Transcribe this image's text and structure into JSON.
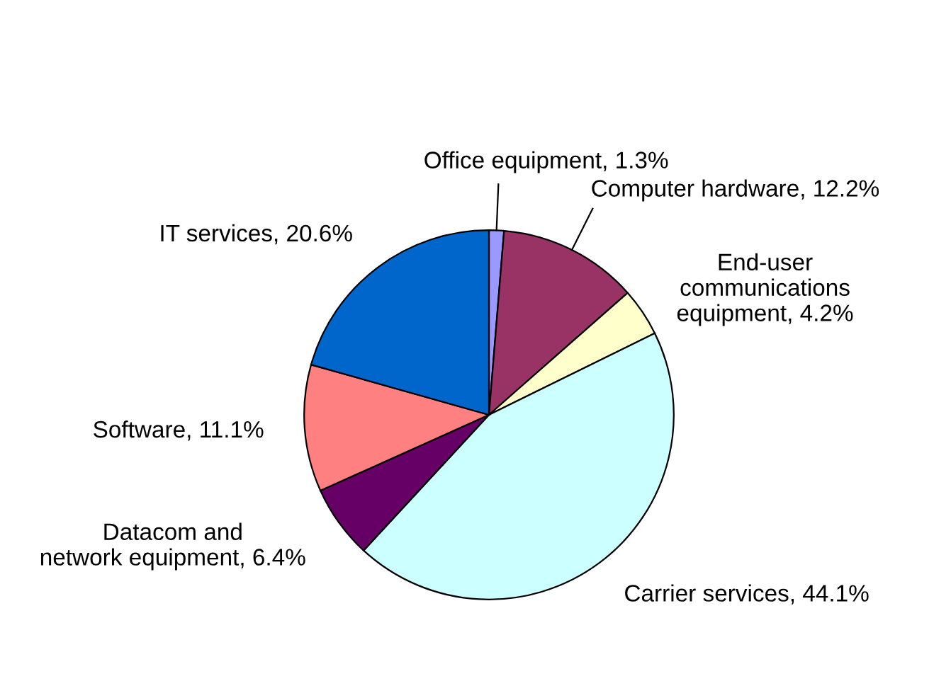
{
  "chart_data": {
    "type": "pie",
    "categories": [
      "Office equipment",
      "Computer hardware",
      "End-user\ncommunications\nequipment",
      "Carrier services",
      "Datacom and\nnetwork equipment",
      "Software",
      "IT services"
    ],
    "values": [
      1.3,
      12.2,
      4.2,
      44.1,
      6.4,
      11.1,
      20.6
    ],
    "value_labels": [
      "1.3%",
      "12.2%",
      "4.2%",
      "44.1%",
      "6.4%",
      "11.1%",
      "20.6%"
    ],
    "colors": [
      "#9999ff",
      "#993366",
      "#ffffcc",
      "#ccffff",
      "#660066",
      "#ff8080",
      "#0066cc"
    ],
    "legend": false
  }
}
